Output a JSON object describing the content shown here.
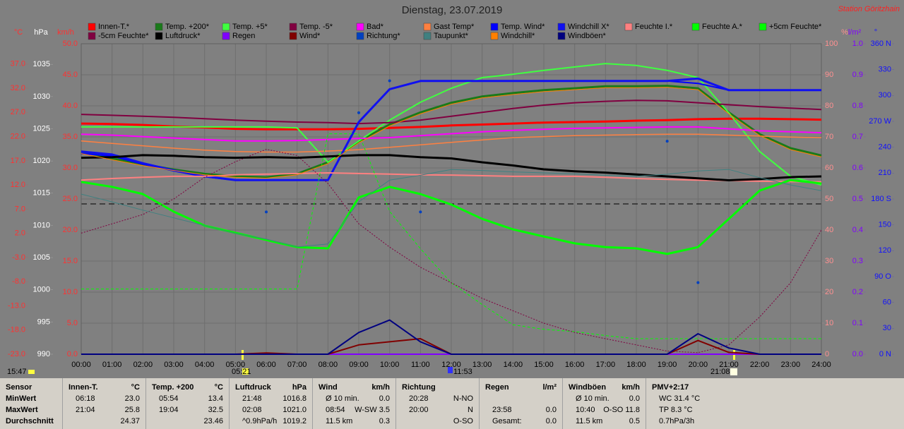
{
  "chart_data": {
    "type": "line",
    "title": "Dienstag, 23.07.2019",
    "station": "Station Göritzhain",
    "grid": true,
    "annotations": [
      "05:21",
      "11:53",
      "21:08",
      "15:47"
    ],
    "xlim": [
      0,
      24
    ],
    "x": [
      0,
      1,
      2,
      3,
      4,
      5,
      6,
      7,
      8,
      9,
      10,
      11,
      12,
      13,
      14,
      15,
      16,
      17,
      18,
      19,
      20,
      21,
      22,
      23,
      24
    ],
    "xticks": [
      {
        "value": 0,
        "label": "00:00"
      },
      {
        "value": 1,
        "label": "01:00"
      },
      {
        "value": 2,
        "label": "02:00"
      },
      {
        "value": 3,
        "label": "03:00"
      },
      {
        "value": 4,
        "label": "04:00"
      },
      {
        "value": 5,
        "label": "05:00"
      },
      {
        "value": 6,
        "label": "06:00"
      },
      {
        "value": 7,
        "label": "07:00"
      },
      {
        "value": 8,
        "label": "08:00"
      },
      {
        "value": 9,
        "label": "09:00"
      },
      {
        "value": 10,
        "label": "10:00"
      },
      {
        "value": 11,
        "label": "11:00"
      },
      {
        "value": 12,
        "label": "12:00"
      },
      {
        "value": 13,
        "label": "13:00"
      },
      {
        "value": 14,
        "label": "14:00"
      },
      {
        "value": 15,
        "label": "15:00"
      },
      {
        "value": 16,
        "label": "16:00"
      },
      {
        "value": 17,
        "label": "17:00"
      },
      {
        "value": 18,
        "label": "18:00"
      },
      {
        "value": 19,
        "label": "19:00"
      },
      {
        "value": 20,
        "label": "20:00"
      },
      {
        "value": 21,
        "label": "21:00"
      },
      {
        "value": 22,
        "label": "22:00"
      },
      {
        "value": 23,
        "label": "23:00"
      },
      {
        "value": 24,
        "label": "24:00"
      }
    ],
    "axes": {
      "temp": {
        "label": "°C",
        "color": "#ff3030",
        "lim": [
          -23,
          41.2
        ],
        "ticks": [
          {
            "value": -23,
            "label": "-23.0"
          },
          {
            "value": -18,
            "label": "-18.0"
          },
          {
            "value": -13,
            "label": "-13.0"
          },
          {
            "value": -8,
            "label": "-8.0"
          },
          {
            "value": -3,
            "label": "-3.0"
          },
          {
            "value": 2,
            "label": "2.0"
          },
          {
            "value": 7,
            "label": "7.0"
          },
          {
            "value": 12,
            "label": "12.0"
          },
          {
            "value": 17,
            "label": "17.0"
          },
          {
            "value": 22,
            "label": "22.0"
          },
          {
            "value": 27,
            "label": "27.0"
          },
          {
            "value": 32,
            "label": "32.0"
          },
          {
            "value": 37,
            "label": "37.0"
          }
        ]
      },
      "hpa": {
        "label": "hPa",
        "color": "#ffffff",
        "lim": [
          990,
          1038.2
        ],
        "ticks": [
          990,
          995,
          1000,
          1005,
          1010,
          1015,
          1020,
          1025,
          1030,
          1035
        ]
      },
      "kmh": {
        "label": "km/h",
        "color": "#ff3030",
        "lim": [
          0,
          50
        ],
        "ticks": [
          {
            "value": 0,
            "label": "0.0"
          },
          {
            "value": 5,
            "label": "5.0"
          },
          {
            "value": 10,
            "label": "10.0"
          },
          {
            "value": 15,
            "label": "15.0"
          },
          {
            "value": 20,
            "label": "20.0"
          },
          {
            "value": 25,
            "label": "25.0"
          },
          {
            "value": 30,
            "label": "30.0"
          },
          {
            "value": 35,
            "label": "35.0"
          },
          {
            "value": 40,
            "label": "40.0"
          },
          {
            "value": 45,
            "label": "45.0"
          },
          {
            "value": 50,
            "label": "50.0"
          }
        ]
      },
      "pct": {
        "label": "%",
        "color": "#ff9090",
        "lim": [
          0,
          100
        ],
        "ticks": [
          0,
          10,
          20,
          30,
          40,
          50,
          60,
          70,
          80,
          90,
          100
        ]
      },
      "rain": {
        "label": "l/m²",
        "color": "#8000ff",
        "lim": [
          0,
          1
        ],
        "ticks": [
          {
            "value": 0,
            "label": "0.0"
          },
          {
            "value": 0.1,
            "label": "0.1"
          },
          {
            "value": 0.2,
            "label": "0.2"
          },
          {
            "value": 0.3,
            "label": "0.3"
          },
          {
            "value": 0.4,
            "label": "0.4"
          },
          {
            "value": 0.5,
            "label": "0.5"
          },
          {
            "value": 0.6,
            "label": "0.6"
          },
          {
            "value": 0.7,
            "label": "0.7"
          },
          {
            "value": 0.8,
            "label": "0.8"
          },
          {
            "value": 0.9,
            "label": "0.9"
          },
          {
            "value": 1,
            "label": "1.0"
          }
        ]
      },
      "deg": {
        "label": "°",
        "color": "#1010ff",
        "lim": [
          0,
          360
        ],
        "ticks": [
          {
            "value": 0,
            "label": "0 N"
          },
          30,
          60,
          {
            "value": 90,
            "label": "90 O"
          },
          120,
          150,
          {
            "value": 180,
            "label": "180 S"
          },
          210,
          240,
          {
            "value": 270,
            "label": "270 W"
          },
          300,
          330,
          {
            "value": 360,
            "label": "360 N"
          }
        ]
      }
    },
    "series": [
      {
        "name": "Innen-T.*",
        "color": "#ff0000",
        "axis": "temp",
        "style": "line",
        "width": 3,
        "values": [
          24.7,
          24.6,
          24.4,
          24.1,
          23.9,
          23.6,
          23.5,
          23.5,
          23.5,
          23.6,
          23.8,
          24.0,
          24.3,
          24.5,
          24.7,
          24.9,
          25.0,
          25.1,
          25.3,
          25.4,
          25.6,
          25.7,
          25.7,
          25.6,
          25.5
        ]
      },
      {
        "name": "Temp. +200*",
        "color": "#1a7a1a",
        "axis": "temp",
        "style": "line",
        "width": 3,
        "values": [
          18.9,
          17.5,
          16.3,
          15.2,
          14.3,
          13.8,
          13.6,
          14.3,
          16.7,
          21.0,
          24.5,
          27.0,
          29.0,
          30.3,
          31.0,
          31.6,
          32.0,
          32.4,
          32.4,
          32.5,
          32.0,
          27.0,
          22.5,
          19.6,
          18.1
        ]
      },
      {
        "name": "Temp. +5*",
        "color": "#40ff40",
        "axis": "temp",
        "style": "line",
        "width": 2,
        "values": [
          24.0,
          24.0,
          24.0,
          24.0,
          24.0,
          24.0,
          24.0,
          23.8,
          16.7,
          21.1,
          25.4,
          29.1,
          32.0,
          34.2,
          34.9,
          35.7,
          36.4,
          37.1,
          36.7,
          35.7,
          34.2,
          26.9,
          18.9,
          13.8,
          12.0
        ]
      },
      {
        "name": "Temp. -5*",
        "color": "#800040",
        "axis": "temp",
        "style": "line",
        "width": 2,
        "values": [
          26.6,
          26.4,
          26.2,
          26.0,
          25.7,
          25.4,
          25.2,
          25.0,
          24.9,
          24.7,
          24.9,
          25.4,
          26.2,
          27.0,
          27.8,
          28.5,
          29.0,
          29.3,
          29.5,
          29.4,
          29.0,
          28.6,
          28.2,
          27.9,
          27.6
        ]
      },
      {
        "name": "Bad*",
        "color": "#ff00ff",
        "axis": "temp",
        "style": "line",
        "width": 2,
        "values": [
          22.5,
          22.3,
          22.0,
          21.7,
          21.4,
          21.1,
          21.1,
          21.2,
          21.4,
          21.6,
          21.8,
          22.2,
          22.6,
          23.0,
          23.3,
          23.5,
          23.7,
          23.8,
          23.9,
          24.0,
          24.0,
          23.6,
          23.2,
          23.0,
          22.8
        ]
      },
      {
        "name": "Gast Temp*",
        "color": "#ff8040",
        "axis": "temp",
        "style": "line",
        "width": 1.5,
        "values": [
          21.1,
          20.6,
          20.1,
          19.6,
          19.2,
          18.9,
          18.8,
          18.8,
          19.0,
          19.3,
          19.8,
          20.3,
          20.8,
          21.3,
          21.8,
          22.0,
          22.2,
          22.3,
          22.4,
          22.5,
          22.5,
          22.3,
          22.1,
          21.9,
          21.8
        ]
      },
      {
        "name": "Temp. Wind*",
        "color": "#0000ff",
        "axis": "temp",
        "style": "line",
        "width": 2,
        "values": [
          18.5,
          18.0,
          16.3,
          14.9,
          13.7,
          13.0,
          13.0,
          13.0,
          13.0,
          25.0,
          31.8,
          33.5,
          33.5,
          33.5,
          33.5,
          33.5,
          33.5,
          33.5,
          33.5,
          33.5,
          33.0,
          31.6,
          31.6,
          31.6,
          31.6
        ]
      },
      {
        "name": "Windchill X*",
        "color": "#1010f0",
        "axis": "temp",
        "style": "line",
        "width": 3,
        "values": [
          18.9,
          18.3,
          16.5,
          15.0,
          13.8,
          13.0,
          13.0,
          13.0,
          13.0,
          25.0,
          31.8,
          33.5,
          33.5,
          33.5,
          33.5,
          33.5,
          33.5,
          33.5,
          33.5,
          33.5,
          34.0,
          31.6,
          31.6,
          31.6,
          31.6
        ]
      },
      {
        "name": "Feuchte I.*",
        "color": "#ff8080",
        "axis": "pct",
        "style": "line",
        "width": 2,
        "values": [
          56.1,
          56.6,
          57.0,
          57.3,
          57.3,
          57.8,
          58.0,
          58.2,
          58.4,
          58.2,
          58.0,
          57.8,
          57.7,
          57.5,
          57.3,
          57.3,
          57.3,
          57.0,
          56.6,
          56.3,
          56.1,
          55.9,
          55.7,
          55.6,
          55.5
        ]
      },
      {
        "name": "Feuchte A.*",
        "color": "#00ff00",
        "axis": "pct",
        "style": "line",
        "width": 3,
        "values": [
          55.5,
          53.9,
          51.6,
          45.9,
          41.4,
          39.1,
          36.8,
          34.5,
          34.1,
          50.5,
          53.9,
          51.6,
          48.2,
          43.6,
          40.2,
          37.9,
          35.7,
          34.5,
          34.1,
          32.3,
          34.5,
          43.6,
          52.7,
          56.1,
          55.0
        ]
      },
      {
        "name": "+5cm Feuchte*",
        "color": "#00ff00",
        "axis": "pct",
        "style": "dashed",
        "width": 1,
        "values": [
          21,
          21,
          21,
          21,
          21,
          21,
          21,
          21,
          71,
          71,
          46,
          34,
          23,
          16,
          9.5,
          8,
          7.3,
          6,
          5,
          5,
          5,
          5,
          5,
          5,
          5
        ]
      },
      {
        "name": "-5cm Feuchte*",
        "color": "#800040",
        "axis": "pct",
        "style": "dotted",
        "width": 1,
        "values": [
          39,
          42,
          45,
          50,
          57,
          62,
          66,
          64,
          55,
          42,
          34.5,
          28,
          23,
          18,
          14,
          10,
          7,
          5,
          3,
          1,
          0.5,
          3,
          12,
          23,
          40
        ]
      },
      {
        "name": "Luftdruck*",
        "color": "#000000",
        "axis": "hpa",
        "style": "line",
        "width": 3,
        "values": [
          1020.5,
          1020.6,
          1020.9,
          1020.8,
          1020.6,
          1020.5,
          1020.6,
          1020.5,
          1020.7,
          1020.9,
          1020.9,
          1020.6,
          1020.4,
          1019.8,
          1019.3,
          1018.7,
          1018.4,
          1018.2,
          1017.9,
          1017.6,
          1017.3,
          1017.0,
          1017.2,
          1017.5,
          1017.6
        ]
      },
      {
        "name": "Regen",
        "color": "#8000ff",
        "axis": "rain",
        "style": "line",
        "width": 2,
        "values": [
          0,
          0,
          0,
          0,
          0,
          0,
          0,
          0,
          0,
          0,
          0,
          0,
          0,
          0,
          0,
          0,
          0,
          0,
          0,
          0,
          0,
          0,
          0,
          0,
          0
        ]
      },
      {
        "name": "Wind*",
        "color": "#800000",
        "axis": "kmh",
        "style": "line",
        "width": 2,
        "values": [
          0,
          0,
          0,
          0,
          0,
          0,
          0.2,
          0,
          0,
          1.5,
          2.0,
          2.5,
          0,
          0,
          0,
          0,
          0,
          0,
          0,
          0,
          2.2,
          0.3,
          0,
          0,
          0
        ]
      },
      {
        "name": "Richtung*",
        "color": "#0040c0",
        "axis": "deg",
        "style": "dots",
        "width": 2,
        "values": [
          null,
          null,
          null,
          null,
          null,
          null,
          165,
          null,
          null,
          280,
          317,
          165,
          null,
          null,
          null,
          null,
          null,
          null,
          null,
          247,
          83,
          null,
          null,
          null,
          null
        ]
      },
      {
        "name": "Taupunkt*",
        "color": "#408080",
        "axis": "temp",
        "style": "line",
        "width": 1,
        "values": [
          10.1,
          8.5,
          6.8,
          5.2,
          3.6,
          2.0,
          0.8,
          -0.8,
          -0.2,
          8.5,
          13.0,
          14.0,
          15.2,
          15.0,
          14.7,
          14.5,
          14.3,
          14.0,
          13.8,
          14.2,
          14.9,
          15.2,
          13.5,
          12.0,
          10.8
        ]
      },
      {
        "name": "Windchill*",
        "color": "#ff8000",
        "axis": "temp",
        "style": "line",
        "width": 1,
        "values": [
          18.5,
          17.2,
          16.0,
          15.0,
          14.1,
          13.6,
          13.4,
          14.1,
          16.4,
          20.7,
          24.2,
          26.7,
          28.7,
          30.0,
          30.7,
          31.3,
          31.7,
          32.1,
          32.1,
          32.2,
          31.7,
          26.7,
          22.2,
          19.3,
          17.8
        ]
      },
      {
        "name": "Windböen*",
        "color": "#000080",
        "axis": "kmh",
        "style": "line",
        "width": 2,
        "values": [
          0,
          0,
          0,
          0,
          0,
          0,
          0,
          0,
          0,
          3.5,
          5.5,
          2.0,
          0,
          0,
          0,
          0,
          0,
          0,
          0,
          0,
          3.3,
          1.0,
          0,
          0,
          0
        ]
      }
    ]
  },
  "table": {
    "columns": [
      {
        "head": [
          "Sensor"
        ],
        "rows": [
          [
            "MinWert"
          ],
          [
            "MaxWert"
          ],
          [
            "Durchschnitt"
          ]
        ]
      },
      {
        "head": [
          "Innen-T.",
          "°C"
        ],
        "rows": [
          [
            "06:18",
            "23.0"
          ],
          [
            "21:04",
            "25.8"
          ],
          [
            "24.37"
          ]
        ]
      },
      {
        "head": [
          "Temp. +200",
          "°C"
        ],
        "rows": [
          [
            "05:54",
            "13.4"
          ],
          [
            "19:04",
            "32.5"
          ],
          [
            "23.46"
          ]
        ]
      },
      {
        "head": [
          "Luftdruck",
          "hPa"
        ],
        "rows": [
          [
            "21:48",
            "1016.8"
          ],
          [
            "02:08",
            "1021.0"
          ],
          [
            "^0.9hPa/h",
            "1019.2"
          ]
        ]
      },
      {
        "head": [
          "Wind",
          "km/h"
        ],
        "rows": [
          [
            "Ø 10 min.",
            "0.0"
          ],
          [
            "08:54",
            "W-SW 3.5"
          ],
          [
            "11.5 km",
            "0.3"
          ]
        ]
      },
      {
        "head": [
          "Richtung"
        ],
        "rows": [
          [
            "20:28",
            "N-NO"
          ],
          [
            "20:00",
            "N"
          ],
          [
            "O-SO"
          ]
        ]
      },
      {
        "head": [
          "Regen",
          "l/m²"
        ],
        "rows": [
          [],
          [
            "23:58",
            "0.0"
          ],
          [
            "Gesamt:",
            "0.0"
          ]
        ]
      },
      {
        "head": [
          "Windböen",
          "km/h"
        ],
        "rows": [
          [
            "Ø 10 min.",
            "0.0"
          ],
          [
            "10:40",
            "O-SO 11.8"
          ],
          [
            "11.5 km",
            "0.5"
          ]
        ]
      },
      {
        "head": [
          "PMV+2:17"
        ],
        "rows": [
          [
            "WC 31.4 °C"
          ],
          [
            "TP 8.3 °C"
          ],
          [
            "0.7hPa/3h"
          ]
        ]
      }
    ]
  }
}
